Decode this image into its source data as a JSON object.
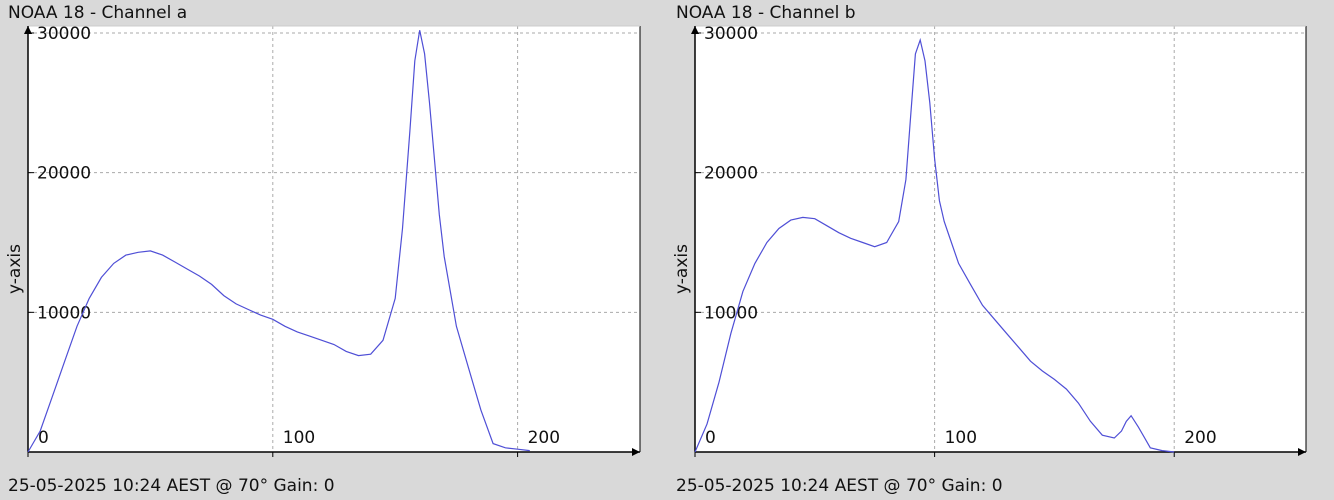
{
  "panels": [
    {
      "title": "NOAA 18 - Channel a",
      "footer": "25-05-2025 10:24 AEST @ 70° Gain: 0",
      "ylabel": "y-axis"
    },
    {
      "title": "NOAA 18 - Channel b",
      "footer": "25-05-2025 10:24 AEST @ 70° Gain: 0",
      "ylabel": "y-axis"
    }
  ],
  "colors": {
    "series": "#4f4fd6",
    "grid": "#aaaaaa",
    "axis": "#000000",
    "plot_bg": "#ffffff",
    "page_bg": "#d9d9d9"
  },
  "chart_data": [
    {
      "type": "line",
      "title": "NOAA 18 - Channel a",
      "xlabel": "",
      "ylabel": "y-axis",
      "xlim": [
        0,
        250
      ],
      "ylim": [
        0,
        30500
      ],
      "xticks": [
        0,
        100,
        200
      ],
      "yticks": [
        10000,
        20000,
        30000
      ],
      "grid": true,
      "series": [
        {
          "x": [
            0,
            5,
            10,
            15,
            20,
            25,
            30,
            35,
            40,
            45,
            50,
            55,
            60,
            65,
            70,
            75,
            80,
            85,
            90,
            95,
            100,
            105,
            110,
            115,
            120,
            125,
            130,
            135,
            140,
            145,
            150,
            153,
            156,
            158,
            160,
            162,
            164,
            166,
            168,
            170,
            175,
            180,
            185,
            190,
            195,
            200,
            205
          ],
          "y": [
            0,
            1500,
            4000,
            6500,
            9000,
            11000,
            12500,
            13500,
            14100,
            14300,
            14400,
            14100,
            13600,
            13100,
            12600,
            12000,
            11200,
            10600,
            10200,
            9800,
            9500,
            9000,
            8600,
            8300,
            8000,
            7700,
            7200,
            6900,
            7000,
            8000,
            11000,
            16000,
            23000,
            28000,
            30200,
            28500,
            25000,
            21000,
            17000,
            14000,
            9000,
            6000,
            3000,
            600,
            300,
            200,
            100
          ]
        }
      ]
    },
    {
      "type": "line",
      "title": "NOAA 18 - Channel b",
      "xlabel": "",
      "ylabel": "y-axis",
      "xlim": [
        0,
        255
      ],
      "ylim": [
        0,
        30500
      ],
      "xticks": [
        0,
        100,
        200
      ],
      "yticks": [
        10000,
        20000,
        30000
      ],
      "grid": true,
      "series": [
        {
          "x": [
            0,
            5,
            10,
            15,
            20,
            25,
            30,
            35,
            40,
            45,
            50,
            55,
            60,
            65,
            70,
            75,
            80,
            85,
            88,
            90,
            92,
            94,
            96,
            98,
            100,
            102,
            104,
            106,
            110,
            115,
            120,
            125,
            130,
            135,
            140,
            145,
            150,
            155,
            160,
            165,
            170,
            175,
            178,
            180,
            182,
            185,
            190,
            195,
            200
          ],
          "y": [
            0,
            2000,
            5000,
            8500,
            11500,
            13500,
            15000,
            16000,
            16600,
            16800,
            16700,
            16200,
            15700,
            15300,
            15000,
            14700,
            15000,
            16500,
            19500,
            24000,
            28500,
            29500,
            28000,
            25000,
            21000,
            18000,
            16500,
            15500,
            13500,
            12000,
            10500,
            9500,
            8500,
            7500,
            6500,
            5800,
            5200,
            4500,
            3500,
            2200,
            1200,
            1000,
            1500,
            2200,
            2600,
            1800,
            300,
            100,
            0
          ]
        }
      ]
    }
  ]
}
